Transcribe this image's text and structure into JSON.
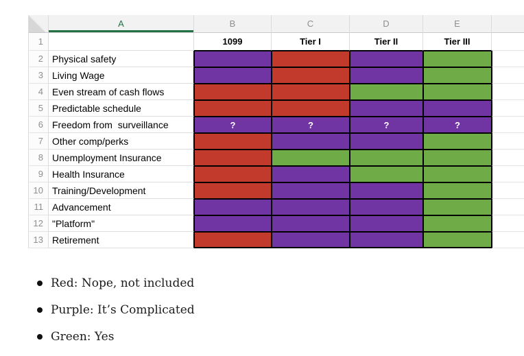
{
  "colors": {
    "red": "#C23A2B",
    "purple": "#7134A3",
    "green": "#6FAC47",
    "selected_header_green": "#217346"
  },
  "spreadsheet": {
    "column_headers": [
      {
        "letter": "A",
        "selected": true
      },
      {
        "letter": "B",
        "selected": false
      },
      {
        "letter": "C",
        "selected": false
      },
      {
        "letter": "D",
        "selected": false
      },
      {
        "letter": "E",
        "selected": false
      },
      {
        "letter": "",
        "selected": false
      }
    ],
    "value_row": {
      "number": "1",
      "values": [
        "1099",
        "Tier I",
        "Tier II",
        "Tier III"
      ]
    },
    "rows": [
      {
        "number": "2",
        "label": "Physical safety",
        "cells": [
          {
            "color": "purple",
            "text": ""
          },
          {
            "color": "red",
            "text": ""
          },
          {
            "color": "purple",
            "text": ""
          },
          {
            "color": "green",
            "text": ""
          }
        ]
      },
      {
        "number": "3",
        "label": "Living Wage",
        "cells": [
          {
            "color": "purple",
            "text": ""
          },
          {
            "color": "red",
            "text": ""
          },
          {
            "color": "purple",
            "text": ""
          },
          {
            "color": "green",
            "text": ""
          }
        ]
      },
      {
        "number": "4",
        "label": "Even stream of cash flows",
        "cells": [
          {
            "color": "red",
            "text": ""
          },
          {
            "color": "red",
            "text": ""
          },
          {
            "color": "green",
            "text": ""
          },
          {
            "color": "green",
            "text": ""
          }
        ]
      },
      {
        "number": "5",
        "label": "Predictable schedule",
        "cells": [
          {
            "color": "red",
            "text": ""
          },
          {
            "color": "red",
            "text": ""
          },
          {
            "color": "purple",
            "text": ""
          },
          {
            "color": "purple",
            "text": ""
          }
        ]
      },
      {
        "number": "6",
        "label": "Freedom from  surveillance",
        "cells": [
          {
            "color": "purple",
            "text": "?"
          },
          {
            "color": "purple",
            "text": "?"
          },
          {
            "color": "purple",
            "text": "?"
          },
          {
            "color": "purple",
            "text": "?"
          }
        ]
      },
      {
        "number": "7",
        "label": "Other comp/perks",
        "cells": [
          {
            "color": "red",
            "text": ""
          },
          {
            "color": "purple",
            "text": ""
          },
          {
            "color": "purple",
            "text": ""
          },
          {
            "color": "green",
            "text": ""
          }
        ]
      },
      {
        "number": "8",
        "label": "Unemployment Insurance",
        "cells": [
          {
            "color": "red",
            "text": ""
          },
          {
            "color": "green",
            "text": ""
          },
          {
            "color": "green",
            "text": ""
          },
          {
            "color": "green",
            "text": ""
          }
        ]
      },
      {
        "number": "9",
        "label": "Health Insurance",
        "cells": [
          {
            "color": "red",
            "text": ""
          },
          {
            "color": "purple",
            "text": ""
          },
          {
            "color": "green",
            "text": ""
          },
          {
            "color": "green",
            "text": ""
          }
        ]
      },
      {
        "number": "10",
        "label": "Training/Development",
        "cells": [
          {
            "color": "red",
            "text": ""
          },
          {
            "color": "purple",
            "text": ""
          },
          {
            "color": "purple",
            "text": ""
          },
          {
            "color": "green",
            "text": ""
          }
        ]
      },
      {
        "number": "11",
        "label": "Advancement",
        "cells": [
          {
            "color": "purple",
            "text": ""
          },
          {
            "color": "purple",
            "text": ""
          },
          {
            "color": "purple",
            "text": ""
          },
          {
            "color": "green",
            "text": ""
          }
        ]
      },
      {
        "number": "12",
        "label": "\"Platform\"",
        "cells": [
          {
            "color": "purple",
            "text": ""
          },
          {
            "color": "purple",
            "text": ""
          },
          {
            "color": "purple",
            "text": ""
          },
          {
            "color": "green",
            "text": ""
          }
        ]
      },
      {
        "number": "13",
        "label": "Retirement",
        "cells": [
          {
            "color": "red",
            "text": ""
          },
          {
            "color": "purple",
            "text": ""
          },
          {
            "color": "purple",
            "text": ""
          },
          {
            "color": "green",
            "text": ""
          }
        ]
      }
    ]
  },
  "legend": {
    "items": [
      {
        "id": "red",
        "text": "Red: Nope, not included"
      },
      {
        "id": "purple",
        "text": "Purple: It’s Complicated"
      },
      {
        "id": "green",
        "text": "Green: Yes"
      }
    ]
  }
}
